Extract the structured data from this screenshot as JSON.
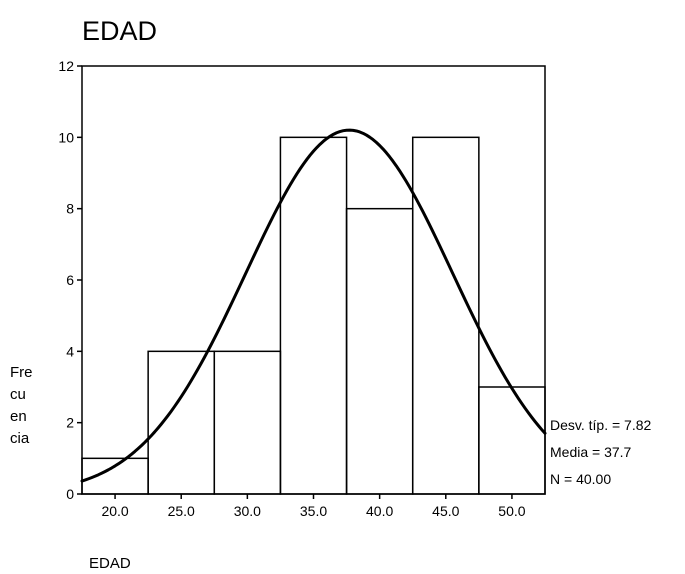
{
  "chart_data": {
    "type": "bar",
    "subtype": "histogram",
    "title": "EDAD",
    "xlabel": "EDAD",
    "ylabel_lines": [
      "Fre",
      "cu",
      "en",
      "cia"
    ],
    "bin_edges": [
      17.5,
      22.5,
      27.5,
      32.5,
      37.5,
      42.5,
      47.5,
      52.5
    ],
    "values": [
      1,
      4,
      4,
      10,
      8,
      10,
      3
    ],
    "x_ticks": [
      20.0,
      25.0,
      30.0,
      35.0,
      40.0,
      45.0,
      50.0
    ],
    "x_tick_labels": [
      "20.0",
      "25.0",
      "30.0",
      "35.0",
      "40.0",
      "45.0",
      "50.0"
    ],
    "y_ticks": [
      0,
      2,
      4,
      6,
      8,
      10,
      12
    ],
    "y_tick_labels": [
      "0",
      "2",
      "4",
      "6",
      "8",
      "10",
      "12"
    ],
    "xlim": [
      17.5,
      52.5
    ],
    "ylim": [
      0,
      12
    ],
    "normal_curve": {
      "mean": 37.7,
      "sd": 7.82,
      "n": 40,
      "bin_width": 5
    },
    "stats_lines": [
      "Desv. típ. = 7.82",
      "Media = 37.7",
      "N = 40.00"
    ],
    "grid": false,
    "legend": "none"
  }
}
